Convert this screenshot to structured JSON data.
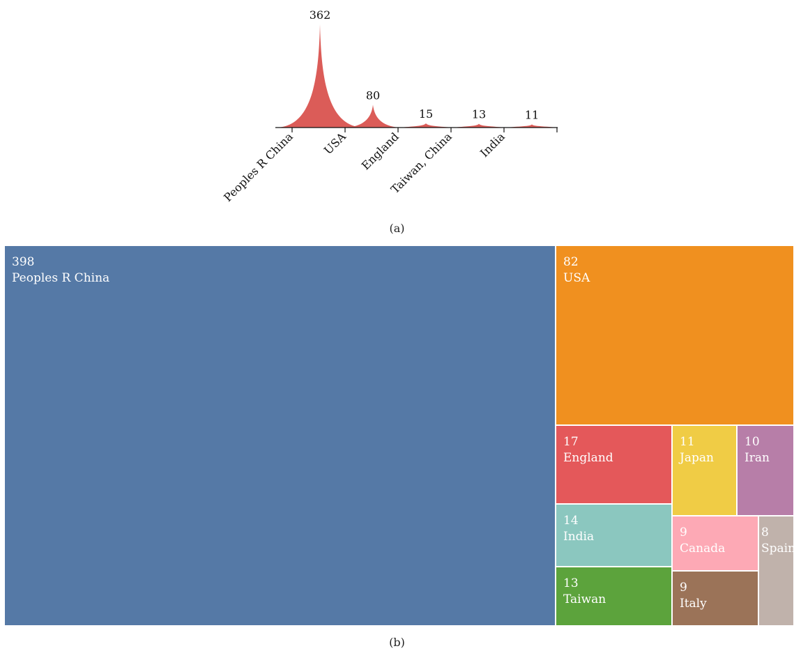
{
  "chart_data": [
    {
      "type": "area",
      "categories": [
        "Peoples R China",
        "USA",
        "England",
        "Taiwan, China",
        "India"
      ],
      "values": [
        362,
        80,
        15,
        13,
        11
      ],
      "data_labels": [
        "362",
        "80",
        "15",
        "13",
        "11"
      ],
      "color": "#d9534f"
    },
    {
      "type": "treemap",
      "items": [
        {
          "name": "Peoples R China",
          "value": 398,
          "label": "398",
          "color": "#5579a6"
        },
        {
          "name": "USA",
          "value": 82,
          "label": "82",
          "color": "#f0901f"
        },
        {
          "name": "England",
          "value": 17,
          "label": "17",
          "color": "#e4585a"
        },
        {
          "name": "Japan",
          "value": 11,
          "label": "11",
          "color": "#f0cc45"
        },
        {
          "name": "Iran",
          "value": 10,
          "label": "10",
          "color": "#b77ea8"
        },
        {
          "name": "India",
          "value": 14,
          "label": "14",
          "color": "#8bc7bf"
        },
        {
          "name": "Canada",
          "value": 9,
          "label": "9",
          "color": "#fda9b5"
        },
        {
          "name": "Spain",
          "value": 8,
          "label": "8",
          "color": "#c0b2ab"
        },
        {
          "name": "Taiwan",
          "value": 13,
          "label": "13",
          "color": "#5ca33c"
        },
        {
          "name": "Italy",
          "value": 9,
          "label": "9",
          "color": "#9b7358"
        }
      ]
    }
  ],
  "captions": {
    "a": "(a)",
    "b": "(b)"
  }
}
